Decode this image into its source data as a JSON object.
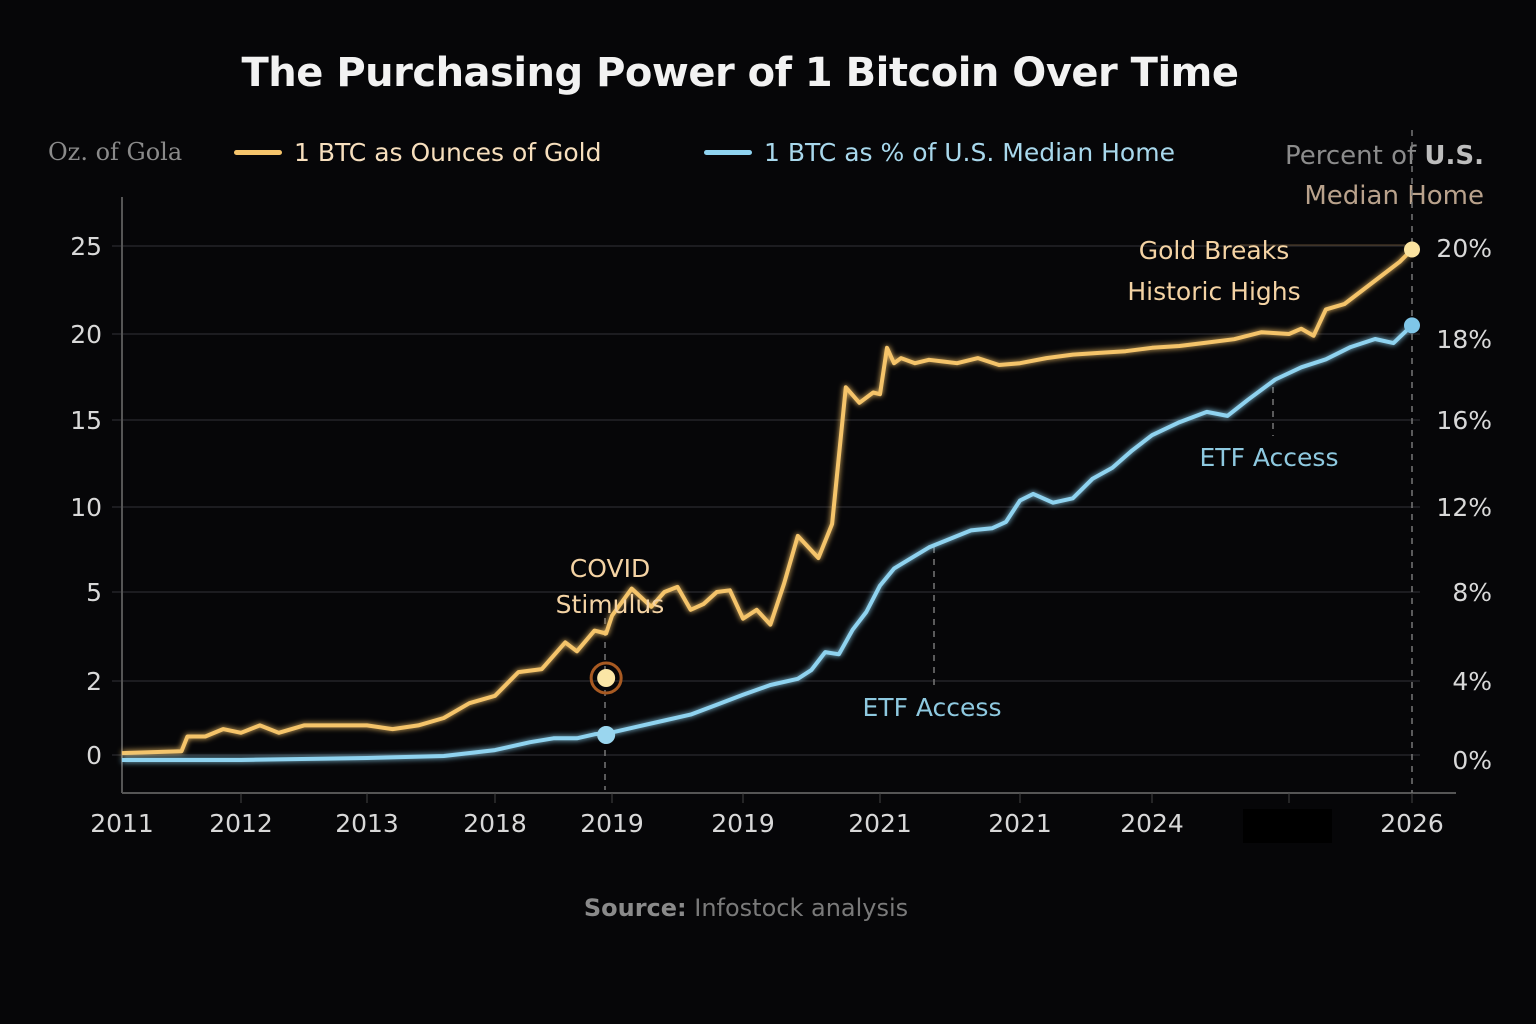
{
  "title": "The Purchasing Power of 1 Bitcoin Over Time",
  "left_axis_title": "Oz. of Gola",
  "right_axis_title": {
    "line1_light": "Percent of ",
    "line1_bold": "U.S.",
    "line2": "Median Home"
  },
  "legend": [
    {
      "label": "1 BTC as Ounces of Gold",
      "color": "#f5c46b"
    },
    {
      "label": "1 BTC as % of U.S. Median Home",
      "color": "#8fd3f0"
    }
  ],
  "source": {
    "prefix": "Source:",
    "text": " Infostock analysis"
  },
  "colors": {
    "gold": "#f5c46b",
    "home": "#8fd3f0",
    "background": "#060608",
    "grid": "#2a2a2e"
  },
  "chart_data": {
    "type": "line",
    "title": "The Purchasing Power of 1 Bitcoin Over Time",
    "xlabel": "",
    "ylabel": "Oz. of Gola",
    "y2label": "Percent of U.S. Median Home",
    "grid": true,
    "legend_position": "top",
    "x_tick_labels": [
      "2011",
      "2012",
      "2013",
      "2018",
      "2019",
      "2019",
      "2021",
      "2021",
      "2024",
      "",
      "2026"
    ],
    "x_tick_highlight": "2026",
    "y_ticks": [
      0,
      2,
      5,
      10,
      15,
      20,
      25
    ],
    "y2_ticks": [
      "0%",
      "4%",
      "8%",
      "12%",
      "16%",
      "18%",
      "20%"
    ],
    "y2_tick_values": [
      0,
      4,
      8,
      12,
      16,
      18,
      20
    ],
    "ylim": [
      0,
      25
    ],
    "y2lim": [
      0,
      20
    ],
    "x_index_range": [
      0,
      10
    ],
    "series": [
      {
        "name": "1 BTC as Ounces of Gold",
        "axis": "left",
        "x": [
          0,
          0.5,
          0.55,
          0.7,
          0.85,
          1.0,
          1.15,
          1.3,
          1.5,
          1.65,
          1.8,
          2.0,
          2.2,
          2.4,
          2.6,
          2.8,
          3.0,
          3.2,
          3.4,
          3.6,
          3.7,
          3.85,
          3.95,
          4.0,
          4.15,
          4.3,
          4.4,
          4.5,
          4.6,
          4.7,
          4.8,
          4.9,
          5.0,
          5.1,
          5.2,
          5.3,
          5.4,
          5.55,
          5.65,
          5.75,
          5.85,
          5.95,
          6.0,
          6.05,
          6.1,
          6.15,
          6.25,
          6.35,
          6.45,
          6.55,
          6.7,
          6.85,
          7.0,
          7.2,
          7.4,
          7.6,
          7.8,
          8.0,
          8.2,
          8.4,
          8.6,
          8.8,
          9.0,
          9.1,
          9.2,
          9.3,
          9.45,
          9.6,
          9.75,
          9.9,
          10.0
        ],
        "values": [
          0.05,
          0.1,
          0.5,
          0.5,
          0.7,
          0.6,
          0.8,
          0.6,
          0.8,
          0.8,
          0.8,
          0.8,
          0.7,
          0.8,
          1.0,
          1.4,
          1.6,
          2.3,
          2.4,
          3.3,
          3.0,
          3.7,
          3.6,
          4.2,
          5.2,
          4.5,
          5.0,
          5.3,
          4.4,
          4.6,
          5.0,
          5.1,
          4.1,
          4.4,
          3.9,
          5.5,
          8.3,
          7.0,
          9.0,
          16.9,
          16.0,
          16.6,
          16.5,
          19.2,
          18.3,
          18.6,
          18.3,
          18.5,
          18.4,
          18.3,
          18.6,
          18.2,
          18.3,
          18.6,
          18.8,
          18.9,
          19.0,
          19.2,
          19.3,
          19.5,
          19.7,
          20.1,
          20.0,
          20.3,
          19.9,
          21.4,
          21.7,
          22.5,
          23.3,
          24.1,
          24.8
        ]
      },
      {
        "name": "1 BTC as % of U.S. Median Home",
        "axis": "right",
        "x": [
          0,
          1.0,
          2.0,
          2.6,
          3.0,
          3.3,
          3.5,
          3.7,
          3.85,
          4.0,
          4.2,
          4.4,
          4.6,
          4.8,
          5.0,
          5.2,
          5.4,
          5.5,
          5.6,
          5.7,
          5.8,
          5.9,
          6.0,
          6.1,
          6.2,
          6.35,
          6.5,
          6.65,
          6.8,
          6.9,
          7.0,
          7.1,
          7.25,
          7.4,
          7.55,
          7.7,
          7.85,
          8.0,
          8.2,
          8.4,
          8.55,
          8.7,
          8.9,
          9.1,
          9.3,
          9.5,
          9.7,
          9.85,
          10.0
        ],
        "values": [
          0.0,
          0.0,
          0.1,
          0.2,
          0.5,
          0.9,
          1.1,
          1.1,
          1.3,
          1.4,
          1.7,
          2.0,
          2.3,
          2.8,
          3.3,
          3.8,
          4.1,
          4.5,
          5.3,
          5.2,
          6.3,
          7.1,
          8.3,
          9.1,
          9.5,
          10.1,
          10.5,
          10.9,
          11.0,
          11.3,
          12.3,
          12.6,
          12.2,
          12.4,
          13.3,
          13.8,
          14.6,
          15.3,
          15.9,
          16.2,
          16.1,
          16.5,
          17.0,
          17.3,
          17.5,
          17.8,
          18.0,
          17.9,
          18.3
        ]
      }
    ],
    "annotations": [
      {
        "label_lines": [
          "COVID",
          "Stimulus"
        ],
        "x_index": 3.95,
        "color": "#f4d3a4",
        "marker": "gold-ring"
      },
      {
        "label_lines": [
          "ETF Access"
        ],
        "x_index": 6.35,
        "color": "#8ec9e0"
      },
      {
        "label_lines": [
          "ETF Access"
        ],
        "x_index": 8.85,
        "color": "#8ec9e0"
      },
      {
        "label_lines": [
          "Gold Breaks",
          "Historic Highs"
        ],
        "x_index": 10.0,
        "color": "#f4d3a4"
      }
    ]
  }
}
